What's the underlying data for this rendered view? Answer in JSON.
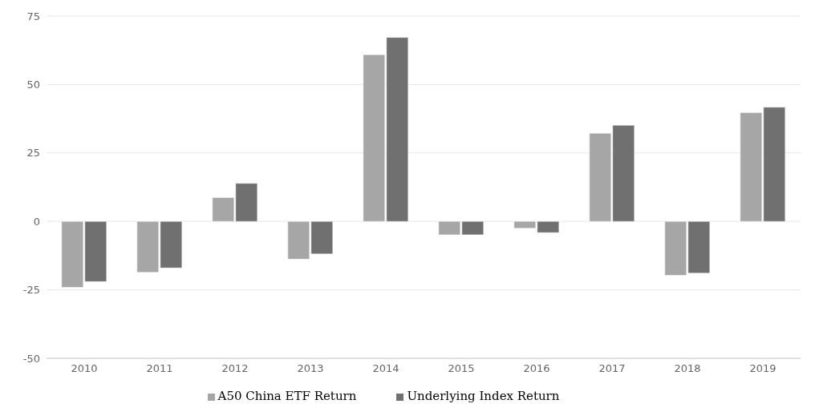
{
  "chart_data": {
    "type": "bar",
    "categories": [
      "2010",
      "2011",
      "2012",
      "2013",
      "2014",
      "2015",
      "2016",
      "2017",
      "2018",
      "2019"
    ],
    "series": [
      {
        "name": "A50 China ETF Return",
        "color": "#a6a6a6",
        "values": [
          -24.1,
          -18.6,
          8.7,
          -13.8,
          60.9,
          -4.9,
          -2.5,
          32.2,
          -19.7,
          39.7
        ]
      },
      {
        "name": "Underlying Index Return",
        "color": "#707070",
        "values": [
          -22,
          -17,
          13.9,
          -11.9,
          67.2,
          -4.9,
          -4.1,
          35.1,
          -18.9,
          41.7
        ]
      }
    ],
    "ylim": [
      -50,
      75
    ],
    "yticks": [
      -50,
      -25,
      0,
      25,
      50,
      75
    ],
    "grid": "y",
    "legend": "bottom"
  }
}
